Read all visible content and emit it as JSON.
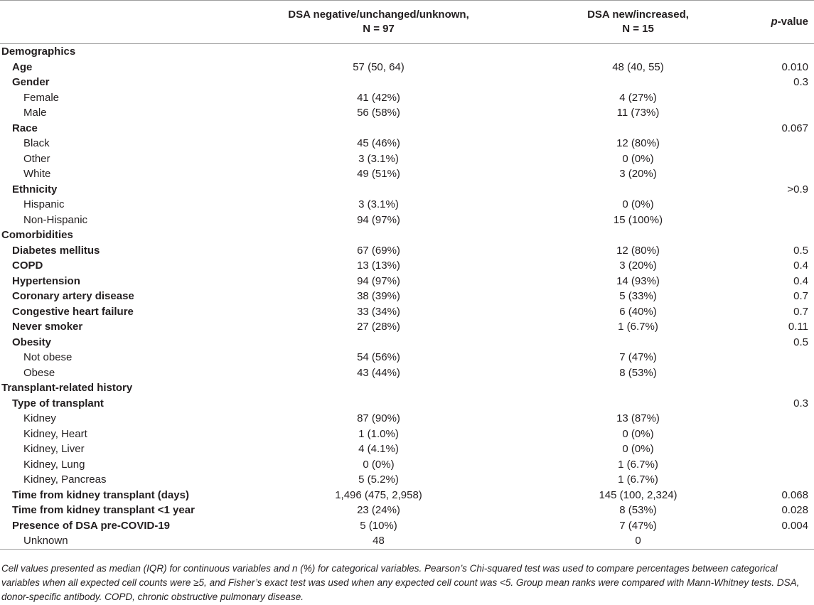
{
  "header": {
    "group1_line1": "DSA negative/unchanged/unknown,",
    "group1_line2": "N = 97",
    "group2_line1": "DSA new/increased,",
    "group2_line2": "N = 15",
    "pvalue_italic": "p",
    "pvalue_rest": "-value"
  },
  "rows": [
    {
      "kind": "section",
      "label": "Demographics",
      "g1": "",
      "g2": "",
      "p": ""
    },
    {
      "kind": "var",
      "label": "Age",
      "g1": "57 (50, 64)",
      "g2": "48 (40, 55)",
      "p": "0.010"
    },
    {
      "kind": "var",
      "label": "Gender",
      "g1": "",
      "g2": "",
      "p": "0.3"
    },
    {
      "kind": "level",
      "label": "Female",
      "g1": "41 (42%)",
      "g2": "4 (27%)",
      "p": ""
    },
    {
      "kind": "level",
      "label": "Male",
      "g1": "56 (58%)",
      "g2": "11 (73%)",
      "p": ""
    },
    {
      "kind": "var",
      "label": "Race",
      "g1": "",
      "g2": "",
      "p": "0.067"
    },
    {
      "kind": "level",
      "label": "Black",
      "g1": "45 (46%)",
      "g2": "12 (80%)",
      "p": ""
    },
    {
      "kind": "level",
      "label": "Other",
      "g1": "3 (3.1%)",
      "g2": "0 (0%)",
      "p": ""
    },
    {
      "kind": "level",
      "label": "White",
      "g1": "49 (51%)",
      "g2": "3 (20%)",
      "p": ""
    },
    {
      "kind": "var",
      "label": "Ethnicity",
      "g1": "",
      "g2": "",
      "p": ">0.9"
    },
    {
      "kind": "level",
      "label": "Hispanic",
      "g1": "3 (3.1%)",
      "g2": "0 (0%)",
      "p": ""
    },
    {
      "kind": "level",
      "label": "Non-Hispanic",
      "g1": "94 (97%)",
      "g2": "15 (100%)",
      "p": ""
    },
    {
      "kind": "section",
      "label": "Comorbidities",
      "g1": "",
      "g2": "",
      "p": ""
    },
    {
      "kind": "var",
      "label": "Diabetes mellitus",
      "g1": "67 (69%)",
      "g2": "12 (80%)",
      "p": "0.5"
    },
    {
      "kind": "var",
      "label": "COPD",
      "g1": "13 (13%)",
      "g2": "3 (20%)",
      "p": "0.4"
    },
    {
      "kind": "var",
      "label": "Hypertension",
      "g1": "94 (97%)",
      "g2": "14 (93%)",
      "p": "0.4"
    },
    {
      "kind": "var",
      "label": "Coronary artery disease",
      "g1": "38 (39%)",
      "g2": "5 (33%)",
      "p": "0.7"
    },
    {
      "kind": "var",
      "label": "Congestive heart failure",
      "g1": "33 (34%)",
      "g2": "6 (40%)",
      "p": "0.7"
    },
    {
      "kind": "var",
      "label": "Never smoker",
      "g1": "27 (28%)",
      "g2": "1 (6.7%)",
      "p": "0.11"
    },
    {
      "kind": "var",
      "label": "Obesity",
      "g1": "",
      "g2": "",
      "p": "0.5"
    },
    {
      "kind": "level",
      "label": "Not obese",
      "g1": "54 (56%)",
      "g2": "7 (47%)",
      "p": ""
    },
    {
      "kind": "level",
      "label": "Obese",
      "g1": "43 (44%)",
      "g2": "8 (53%)",
      "p": ""
    },
    {
      "kind": "section",
      "label": "Transplant-related history",
      "g1": "",
      "g2": "",
      "p": ""
    },
    {
      "kind": "var",
      "label": "Type of transplant",
      "g1": "",
      "g2": "",
      "p": "0.3"
    },
    {
      "kind": "level",
      "label": "Kidney",
      "g1": "87 (90%)",
      "g2": "13 (87%)",
      "p": ""
    },
    {
      "kind": "level",
      "label": "Kidney, Heart",
      "g1": "1 (1.0%)",
      "g2": "0 (0%)",
      "p": ""
    },
    {
      "kind": "level",
      "label": "Kidney, Liver",
      "g1": "4 (4.1%)",
      "g2": "0 (0%)",
      "p": ""
    },
    {
      "kind": "level",
      "label": "Kidney, Lung",
      "g1": "0 (0%)",
      "g2": "1 (6.7%)",
      "p": ""
    },
    {
      "kind": "level",
      "label": "Kidney, Pancreas",
      "g1": "5 (5.2%)",
      "g2": "1 (6.7%)",
      "p": ""
    },
    {
      "kind": "var",
      "label": "Time from kidney transplant (days)",
      "g1": "1,496 (475, 2,958)",
      "g2": "145 (100, 2,324)",
      "p": "0.068"
    },
    {
      "kind": "var",
      "label": "Time from kidney transplant <1 year",
      "g1": "23 (24%)",
      "g2": "8 (53%)",
      "p": "0.028"
    },
    {
      "kind": "var",
      "label": "Presence of DSA pre-COVID-19",
      "g1": "5 (10%)",
      "g2": "7 (47%)",
      "p": "0.004"
    },
    {
      "kind": "level",
      "label": "Unknown",
      "g1": "48",
      "g2": "0",
      "p": ""
    }
  ],
  "footnote": "Cell values presented as median (IQR) for continuous variables and n (%) for categorical variables. Pearson’s Chi-squared test was used to compare percentages between categorical variables when all expected cell counts were ≥5, and Fisher’s exact test was used when any expected cell count was <5. Group mean ranks were compared with Mann-Whitney tests. DSA, donor-specific antibody. COPD, chronic obstructive pulmonary disease."
}
